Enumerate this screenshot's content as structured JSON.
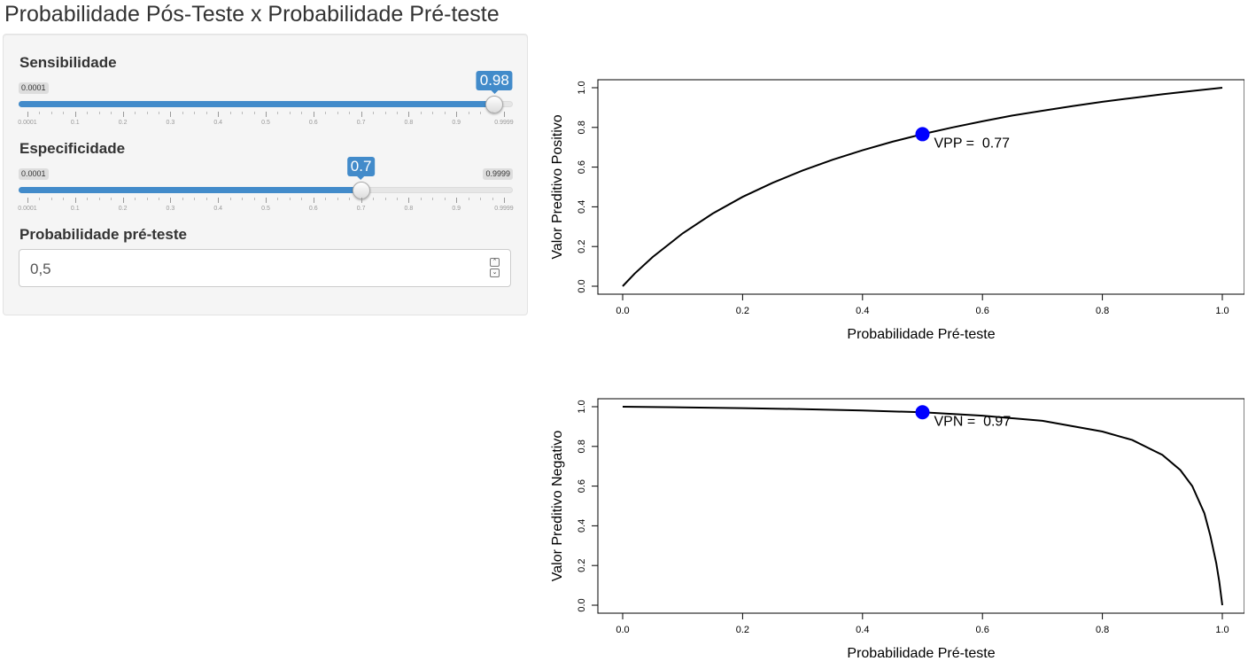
{
  "title": "Probabilidade Pós-Teste x Probabilidade Pré-teste",
  "controls": {
    "sensibilidade": {
      "label": "Sensibilidade",
      "min_label": "0.0001",
      "max_label": "0.9999",
      "value_label": "0.98",
      "value": 0.98,
      "min": 0.0001,
      "max": 0.9999,
      "grid_labels": [
        "0.0001",
        "0.1",
        "0.2",
        "0.3",
        "0.4",
        "0.5",
        "0.6",
        "0.7",
        "0.8",
        "0.9",
        "0.9999"
      ]
    },
    "especificidade": {
      "label": "Especificidade",
      "min_label": "0.0001",
      "max_label": "0.9999",
      "value_label": "0.7",
      "value": 0.7,
      "min": 0.0001,
      "max": 0.9999,
      "grid_labels": [
        "0.0001",
        "0.1",
        "0.2",
        "0.3",
        "0.4",
        "0.5",
        "0.6",
        "0.7",
        "0.8",
        "0.9",
        "0.9999"
      ]
    },
    "pre_teste": {
      "label": "Probabilidade pré-teste",
      "value": "0,5"
    }
  },
  "colors": {
    "accent": "#428bca",
    "point": "#0000ff",
    "curve": "#000000"
  },
  "chart_data": [
    {
      "type": "line",
      "xlabel": "Probabilidade Pré-teste",
      "ylabel": "Valor Preditivo Positivo",
      "xlim": [
        0,
        1
      ],
      "ylim": [
        0,
        1
      ],
      "x_ticks": [
        "0.0",
        "0.2",
        "0.4",
        "0.6",
        "0.8",
        "1.0"
      ],
      "y_ticks": [
        "0.0",
        "0.2",
        "0.4",
        "0.6",
        "0.8",
        "1.0"
      ],
      "series": [
        {
          "x": [
            0,
            0.02,
            0.05,
            0.1,
            0.15,
            0.2,
            0.25,
            0.3,
            0.35,
            0.4,
            0.45,
            0.5,
            0.55,
            0.6,
            0.65,
            0.7,
            0.75,
            0.8,
            0.85,
            0.9,
            0.95,
            1.0
          ],
          "values": [
            0,
            0.0636,
            0.147,
            0.266,
            0.366,
            0.45,
            0.521,
            0.583,
            0.637,
            0.685,
            0.728,
            0.766,
            0.8,
            0.831,
            0.86,
            0.884,
            0.907,
            0.929,
            0.948,
            0.967,
            0.984,
            1.0
          ]
        }
      ],
      "point": {
        "x": 0.5,
        "y": 0.766
      },
      "annotation": "VPP =  0.77"
    },
    {
      "type": "line",
      "xlabel": "Probabilidade Pré-teste",
      "ylabel": "Valor Preditivo Negativo",
      "xlim": [
        0,
        1
      ],
      "ylim": [
        0,
        1
      ],
      "x_ticks": [
        "0.0",
        "0.2",
        "0.4",
        "0.6",
        "0.8",
        "1.0"
      ],
      "y_ticks": [
        "0.0",
        "0.2",
        "0.4",
        "0.6",
        "0.8",
        "1.0"
      ],
      "series": [
        {
          "x": [
            0,
            0.1,
            0.2,
            0.3,
            0.4,
            0.5,
            0.6,
            0.7,
            0.8,
            0.85,
            0.9,
            0.93,
            0.95,
            0.97,
            0.98,
            0.99,
            0.995,
            1.0
          ],
          "values": [
            1.0,
            0.997,
            0.993,
            0.988,
            0.981,
            0.972,
            0.955,
            0.929,
            0.875,
            0.832,
            0.757,
            0.681,
            0.6,
            0.464,
            0.35,
            0.211,
            0.118,
            0
          ]
        }
      ],
      "point": {
        "x": 0.5,
        "y": 0.972
      },
      "annotation": "VPN =  0.97"
    }
  ]
}
